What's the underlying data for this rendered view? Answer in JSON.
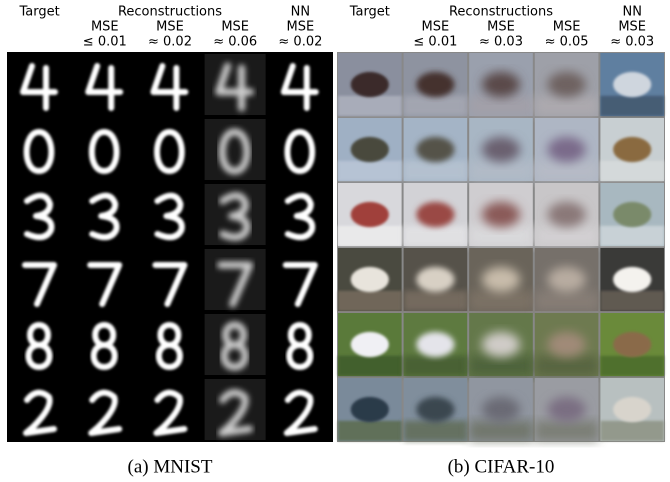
{
  "panels": [
    {
      "target_header": "Target",
      "group_header": "Reconstructions",
      "columns": [
        {
          "lines": [
            "MSE",
            "≤ 0.01"
          ]
        },
        {
          "lines": [
            "MSE",
            "≈ 0.02"
          ]
        },
        {
          "lines": [
            "MSE",
            "≈ 0.06"
          ]
        },
        {
          "lines": [
            "NN",
            "MSE",
            "≈ 0.02"
          ]
        }
      ],
      "caption": "(a) MNIST"
    },
    {
      "target_header": "Target",
      "group_header": "Reconstructions",
      "columns": [
        {
          "lines": [
            "MSE",
            "≤ 0.01"
          ]
        },
        {
          "lines": [
            "MSE",
            "≈ 0.03"
          ]
        },
        {
          "lines": [
            "MSE",
            "≈ 0.05"
          ]
        },
        {
          "lines": [
            "NN",
            "MSE",
            "≈ 0.03"
          ]
        }
      ],
      "caption": "(b) CIFAR-10"
    }
  ]
}
